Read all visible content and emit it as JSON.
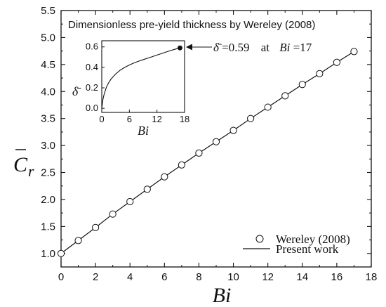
{
  "chart_data": [
    {
      "type": "scatter",
      "xlabel": "Bi",
      "ylabel_main": "C",
      "ylabel_sub": "r",
      "xlim": [
        0,
        18
      ],
      "ylim": [
        0.75,
        5.5
      ],
      "x_ticks": [
        0,
        2,
        4,
        6,
        8,
        10,
        12,
        14,
        16,
        18
      ],
      "y_ticks": [
        1.0,
        1.5,
        2.0,
        2.5,
        3.0,
        3.5,
        4.0,
        4.5,
        5.0,
        5.5
      ],
      "y_tick_labels": [
        "1.0",
        "1.5",
        "2.0",
        "2.5",
        "3.0",
        "3.5",
        "4.0",
        "4.5",
        "5.0",
        "5.5"
      ],
      "grid": false,
      "legend_position": "bottom-right",
      "series": [
        {
          "name": "Wereley (2008)",
          "marker": "open-circle",
          "x": [
            0,
            1,
            2,
            3,
            4,
            5,
            6,
            7,
            8,
            9,
            10,
            11,
            12,
            13,
            14,
            15,
            16,
            17
          ],
          "y": [
            1.0,
            1.24,
            1.48,
            1.73,
            1.96,
            2.19,
            2.42,
            2.64,
            2.86,
            3.07,
            3.28,
            3.5,
            3.71,
            3.92,
            4.13,
            4.33,
            4.54,
            4.74
          ]
        },
        {
          "name": "Present work",
          "marker": "line",
          "x": [
            0,
            1,
            2,
            3,
            4,
            5,
            6,
            7,
            8,
            9,
            10,
            11,
            12,
            13,
            14,
            15,
            16,
            17
          ],
          "y": [
            1.0,
            1.24,
            1.48,
            1.73,
            1.96,
            2.19,
            2.42,
            2.64,
            2.86,
            3.07,
            3.28,
            3.5,
            3.71,
            3.92,
            4.13,
            4.33,
            4.54,
            4.74
          ]
        }
      ]
    },
    {
      "type": "line",
      "title": "Dimensionless pre-yield thickness by Wereley (2008)",
      "xlabel": "Bi",
      "ylabel": "δ̄",
      "xlim": [
        0,
        18
      ],
      "ylim": [
        -0.04,
        0.66
      ],
      "x_ticks": [
        0,
        6,
        12,
        18
      ],
      "y_ticks": [
        0.0,
        0.2,
        0.4,
        0.6
      ],
      "y_tick_labels": [
        "0.0",
        "0.2",
        "0.4",
        "0.6"
      ],
      "series": [
        {
          "x": [
            0,
            0.25,
            0.5,
            1,
            1.5,
            2,
            3,
            4,
            5,
            6,
            7,
            8,
            9,
            10,
            11,
            12,
            13,
            14,
            15,
            16,
            17
          ],
          "y": [
            0.0,
            0.085,
            0.135,
            0.205,
            0.25,
            0.285,
            0.335,
            0.372,
            0.4,
            0.423,
            0.443,
            0.46,
            0.475,
            0.49,
            0.505,
            0.52,
            0.535,
            0.55,
            0.565,
            0.578,
            0.59
          ]
        }
      ],
      "highlight_point": {
        "x": 17,
        "y": 0.59
      },
      "annotation": {
        "symbol": "δ̄",
        "text_value": "=0.59",
        "text_at": "at",
        "text_var": "Bi",
        "text_eq": "=17"
      }
    }
  ]
}
